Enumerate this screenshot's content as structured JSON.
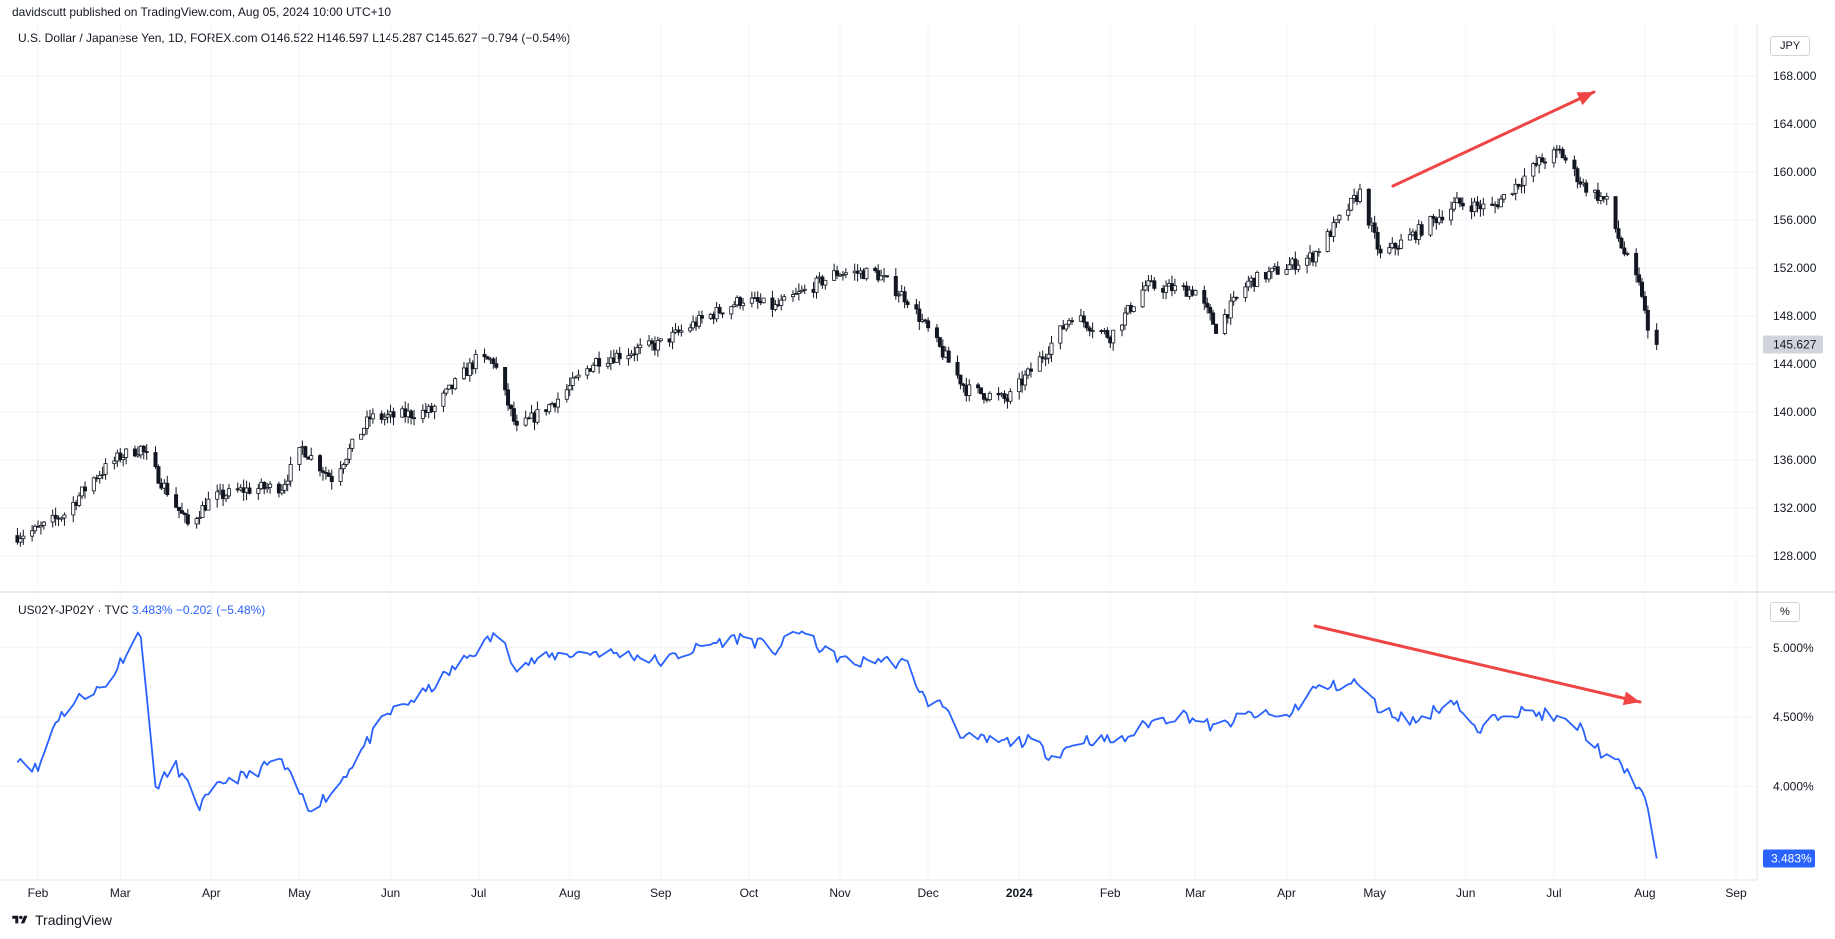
{
  "header": {
    "published": "davidscutt published on TradingView.com, Aug 05, 2024 10:00 UTC+10"
  },
  "top_legend": {
    "symbol": "U.S. Dollar / Japanese Yen, 1D, FOREX.com",
    "ohlc": "O146.522  H146.597  L145.287  C145.627",
    "change": "−0.794 (−0.54%)"
  },
  "bottom_legend": {
    "symbol": "US02Y-JP02Y · TVC",
    "value": "3.483%",
    "change": "−0.202 (−5.48%)"
  },
  "units": {
    "top": "JPY",
    "bottom": "%"
  },
  "footer": {
    "brand": "TradingView"
  },
  "colors": {
    "line": "#2962ff",
    "arrow": "#f04545",
    "candle": "#131722",
    "grid": "#f0f3fa"
  },
  "chart_data": [
    {
      "type": "candlestick",
      "symbol": "USDJPY",
      "y_ticks": [
        "168.000",
        "164.000",
        "160.000",
        "156.000",
        "152.000",
        "148.000",
        "144.000",
        "140.000",
        "136.000",
        "132.000",
        "128.000"
      ],
      "ylim": [
        125.5,
        170
      ],
      "last_value_label": "145.627",
      "x_labels": [
        "Feb",
        "Mar",
        "Apr",
        "May",
        "Jun",
        "Jul",
        "Aug",
        "Sep",
        "Oct",
        "Nov",
        "Dec",
        "2024",
        "Feb",
        "Mar",
        "Apr",
        "May",
        "Jun",
        "Jul",
        "Aug",
        "Sep"
      ],
      "close_anchors": [
        [
          "2023-01-25",
          129.7
        ],
        [
          "2023-02-01",
          130.2
        ],
        [
          "2023-02-10",
          131.5
        ],
        [
          "2023-02-20",
          134.5
        ],
        [
          "2023-03-01",
          136.3
        ],
        [
          "2023-03-08",
          137.0
        ],
        [
          "2023-03-15",
          134.2
        ],
        [
          "2023-03-24",
          130.6
        ],
        [
          "2023-04-01",
          132.8
        ],
        [
          "2023-04-12",
          133.5
        ],
        [
          "2023-04-25",
          133.8
        ],
        [
          "2023-05-02",
          137.0
        ],
        [
          "2023-05-12",
          134.5
        ],
        [
          "2023-05-25",
          139.5
        ],
        [
          "2023-06-01",
          139.6
        ],
        [
          "2023-06-15",
          140.1
        ],
        [
          "2023-06-30",
          144.3
        ],
        [
          "2023-07-06",
          144.3
        ],
        [
          "2023-07-14",
          138.5
        ],
        [
          "2023-07-28",
          141.1
        ],
        [
          "2023-08-10",
          144.3
        ],
        [
          "2023-08-31",
          145.6
        ],
        [
          "2023-09-15",
          147.7
        ],
        [
          "2023-09-29",
          149.4
        ],
        [
          "2023-10-10",
          148.7
        ],
        [
          "2023-10-31",
          151.6
        ],
        [
          "2023-11-13",
          151.6
        ],
        [
          "2023-11-24",
          149.4
        ],
        [
          "2023-12-01",
          146.8
        ],
        [
          "2023-12-14",
          141.9
        ],
        [
          "2023-12-28",
          141.0
        ],
        [
          "2024-01-10",
          145.0
        ],
        [
          "2024-01-19",
          148.1
        ],
        [
          "2024-02-01",
          146.3
        ],
        [
          "2024-02-13",
          150.5
        ],
        [
          "2024-03-01",
          150.1
        ],
        [
          "2024-03-08",
          147.0
        ],
        [
          "2024-03-19",
          150.8
        ],
        [
          "2024-04-10",
          153.0
        ],
        [
          "2024-04-26",
          158.3
        ],
        [
          "2024-05-03",
          153.0
        ],
        [
          "2024-05-15",
          154.9
        ],
        [
          "2024-05-29",
          157.4
        ],
        [
          "2024-06-10",
          157.0
        ],
        [
          "2024-06-26",
          160.8
        ],
        [
          "2024-07-03",
          161.7
        ],
        [
          "2024-07-11",
          158.9
        ],
        [
          "2024-07-19",
          157.5
        ],
        [
          "2024-07-24",
          153.8
        ],
        [
          "2024-07-31",
          149.9
        ],
        [
          "2024-08-02",
          146.5
        ],
        [
          "2024-08-05",
          145.627
        ]
      ]
    },
    {
      "type": "line",
      "symbol": "US02Y-JP02Y",
      "y_ticks": [
        "5.000%",
        "4.500%",
        "4.000%"
      ],
      "ylim": [
        3.4,
        5.2
      ],
      "last_value_label": "3.483%",
      "series": [
        {
          "values_anchors": [
            [
              "2023-01-25",
              4.22
            ],
            [
              "2023-02-01",
              4.12
            ],
            [
              "2023-02-07",
              4.48
            ],
            [
              "2023-02-16",
              4.66
            ],
            [
              "2023-02-24",
              4.72
            ],
            [
              "2023-03-03",
              4.97
            ],
            [
              "2023-03-08",
              5.12
            ],
            [
              "2023-03-10",
              4.62
            ],
            [
              "2023-03-13",
              4.0
            ],
            [
              "2023-03-20",
              4.15
            ],
            [
              "2023-03-28",
              3.86
            ],
            [
              "2023-04-06",
              4.05
            ],
            [
              "2023-04-14",
              4.08
            ],
            [
              "2023-04-24",
              4.2
            ],
            [
              "2023-05-04",
              3.85
            ],
            [
              "2023-05-12",
              3.95
            ],
            [
              "2023-05-24",
              4.32
            ],
            [
              "2023-05-31",
              4.52
            ],
            [
              "2023-06-13",
              4.68
            ],
            [
              "2023-06-30",
              4.98
            ],
            [
              "2023-07-07",
              5.1
            ],
            [
              "2023-07-14",
              4.87
            ],
            [
              "2023-07-28",
              4.95
            ],
            [
              "2023-08-10",
              4.97
            ],
            [
              "2023-08-22",
              4.95
            ],
            [
              "2023-09-01",
              4.9
            ],
            [
              "2023-09-18",
              5.03
            ],
            [
              "2023-09-29",
              5.08
            ],
            [
              "2023-10-10",
              4.98
            ],
            [
              "2023-10-18",
              5.13
            ],
            [
              "2023-10-27",
              4.97
            ],
            [
              "2023-11-06",
              4.88
            ],
            [
              "2023-11-13",
              4.92
            ],
            [
              "2023-11-24",
              4.88
            ],
            [
              "2023-11-30",
              4.62
            ],
            [
              "2023-12-07",
              4.58
            ],
            [
              "2023-12-13",
              4.35
            ],
            [
              "2023-12-26",
              4.32
            ],
            [
              "2024-01-05",
              4.33
            ],
            [
              "2024-01-12",
              4.22
            ],
            [
              "2024-01-23",
              4.34
            ],
            [
              "2024-02-05",
              4.33
            ],
            [
              "2024-02-14",
              4.46
            ],
            [
              "2024-02-26",
              4.52
            ],
            [
              "2024-03-08",
              4.42
            ],
            [
              "2024-03-19",
              4.52
            ],
            [
              "2024-04-01",
              4.5
            ],
            [
              "2024-04-10",
              4.7
            ],
            [
              "2024-04-25",
              4.75
            ],
            [
              "2024-05-03",
              4.55
            ],
            [
              "2024-05-15",
              4.47
            ],
            [
              "2024-05-28",
              4.63
            ],
            [
              "2024-06-05",
              4.38
            ],
            [
              "2024-06-14",
              4.55
            ],
            [
              "2024-06-28",
              4.52
            ],
            [
              "2024-07-10",
              4.42
            ],
            [
              "2024-07-19",
              4.2
            ],
            [
              "2024-07-24",
              4.15
            ],
            [
              "2024-07-30",
              4.0
            ],
            [
              "2024-08-01",
              3.9
            ],
            [
              "2024-08-05",
              3.483
            ]
          ]
        }
      ]
    }
  ]
}
